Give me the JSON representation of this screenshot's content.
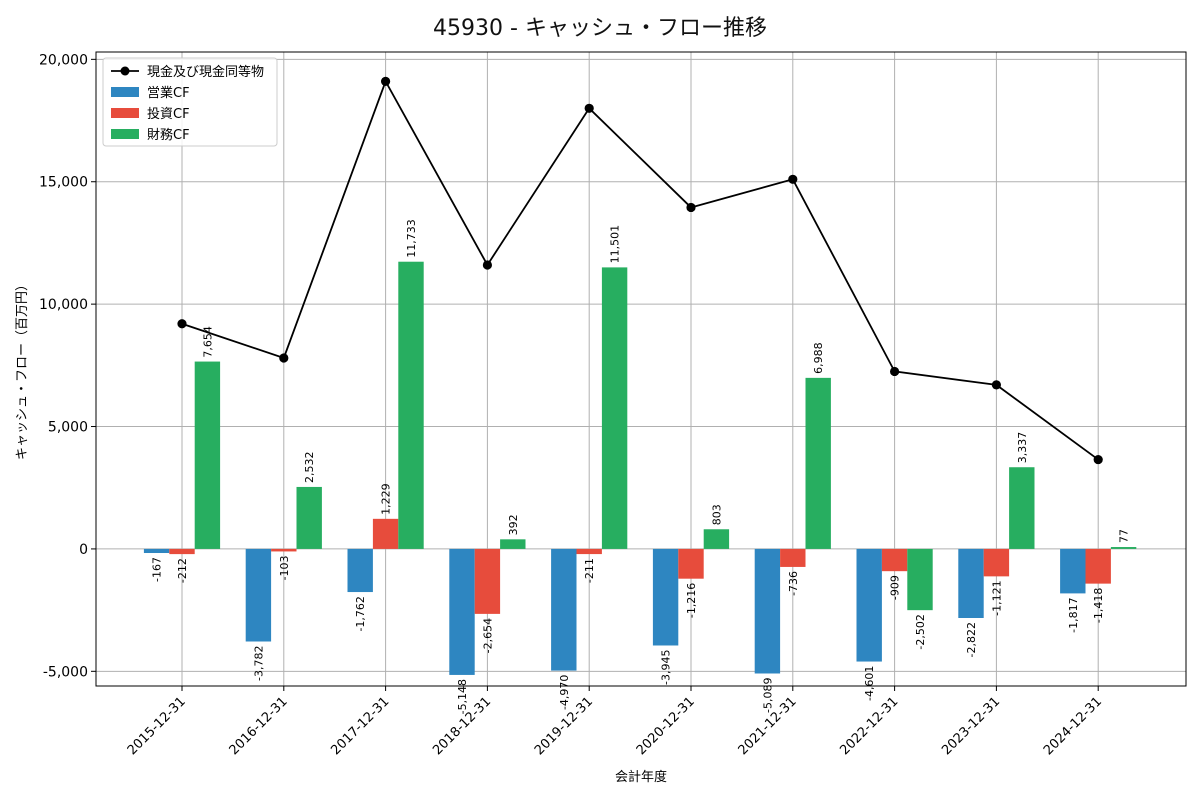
{
  "chart_data": {
    "type": "bar+line",
    "title": "45930 - キャッシュ・フロー推移",
    "xlabel": "会計年度",
    "ylabel": "キャッシュ・フロー（百万円）",
    "ylim": [
      -5600,
      20300
    ],
    "yticks": [
      -5000,
      0,
      5000,
      10000,
      15000,
      20000
    ],
    "ytick_labels": [
      "-5,000",
      "0",
      "5,000",
      "10,000",
      "15,000",
      "20,000"
    ],
    "grid": true,
    "legend_position": "top-left",
    "categories": [
      "2015-12-31",
      "2016-12-31",
      "2017-12-31",
      "2018-12-31",
      "2019-12-31",
      "2020-12-31",
      "2021-12-31",
      "2022-12-31",
      "2023-12-31",
      "2024-12-31"
    ],
    "series": [
      {
        "name": "営業CF",
        "kind": "bar",
        "color": "#2e86c1",
        "values": [
          -167,
          -3782,
          -1762,
          -5148,
          -4970,
          -3945,
          -5089,
          -4601,
          -2822,
          -1817
        ]
      },
      {
        "name": "投資CF",
        "kind": "bar",
        "color": "#e74c3c",
        "values": [
          -212,
          -103,
          1229,
          -2654,
          -211,
          -1216,
          -736,
          -909,
          -1121,
          -1418
        ]
      },
      {
        "name": "財務CF",
        "kind": "bar",
        "color": "#27ae60",
        "values": [
          7654,
          2532,
          11733,
          392,
          11501,
          803,
          6988,
          -2502,
          3337,
          77
        ]
      },
      {
        "name": "現金及び現金同等物",
        "kind": "line",
        "color": "#000000",
        "values": [
          9200,
          7800,
          19100,
          11600,
          18000,
          13950,
          15100,
          7250,
          6700,
          3650
        ]
      }
    ],
    "data_labels": [
      [
        "-167",
        "-212",
        "7,654"
      ],
      [
        "-3,782",
        "-103",
        "2,532"
      ],
      [
        "-1,762",
        "1,229",
        "11,733"
      ],
      [
        "-5,148",
        "-2,654",
        "392"
      ],
      [
        "-4,970",
        "-211",
        "11,501"
      ],
      [
        "-3,945",
        "-1,216",
        "803"
      ],
      [
        "-5,089",
        "-736",
        "6,988"
      ],
      [
        "-4,601",
        "-909",
        "-2,502"
      ],
      [
        "-2,822",
        "-1,121",
        "3,337"
      ],
      [
        "-1,817",
        "-1,418",
        "77"
      ]
    ]
  }
}
